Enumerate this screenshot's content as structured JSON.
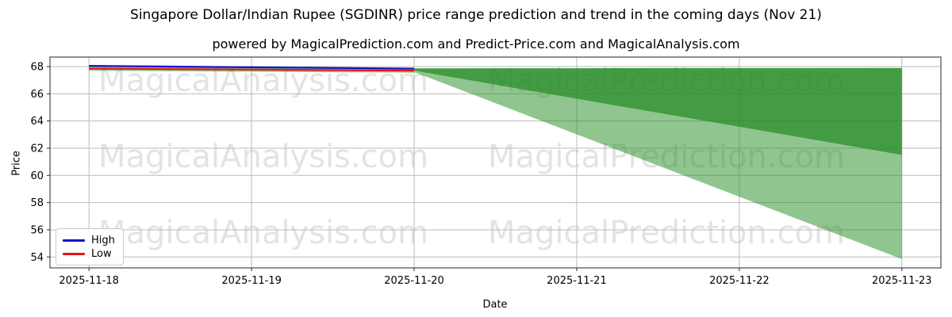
{
  "header": {
    "title": "Singapore Dollar/Indian Rupee (SGDINR) price range prediction and trend in the coming days (Nov 21)",
    "subtitle": "powered by MagicalPrediction.com and Predict-Price.com and MagicalAnalysis.com"
  },
  "watermarks": {
    "left_text": "MagicalAnalysis.com",
    "right_text": "MagicalPrediction.com"
  },
  "axes": {
    "x_label": "Date",
    "y_label": "Price"
  },
  "legend": {
    "items": [
      {
        "label": "High",
        "color": "#1212c8"
      },
      {
        "label": "Low",
        "color": "#e81414"
      }
    ]
  },
  "chart_data": {
    "type": "line",
    "title": "Singapore Dollar/Indian Rupee (SGDINR) price range prediction and trend in the coming days (Nov 21)",
    "xlabel": "Date",
    "ylabel": "Price",
    "grid": true,
    "legend_position": "lower left",
    "categories": [
      "2025-11-18",
      "2025-11-19",
      "2025-11-20",
      "2025-11-21",
      "2025-11-22",
      "2025-11-23"
    ],
    "y_ticks": [
      54,
      56,
      58,
      60,
      62,
      64,
      66,
      68
    ],
    "ylim": [
      53.2,
      68.7
    ],
    "x_pad_days": 0.24,
    "series": [
      {
        "name": "High",
        "color": "#1212c8",
        "x": [
          0,
          1,
          2
        ],
        "values": [
          68.05,
          67.95,
          67.85
        ]
      },
      {
        "name": "Low",
        "color": "#e81414",
        "x": [
          0,
          1,
          2
        ],
        "values": [
          67.85,
          67.78,
          67.7
        ]
      }
    ],
    "bands": [
      {
        "name": "history-range",
        "fill": "rgba(34,139,34,0.5)",
        "x": [
          0,
          1,
          2
        ],
        "upper": [
          68.05,
          67.95,
          67.85
        ],
        "lower": [
          67.7,
          67.62,
          67.55
        ]
      },
      {
        "name": "prediction-outer",
        "fill": "rgba(34,139,34,0.5)",
        "x": [
          2,
          3,
          4,
          5
        ],
        "upper": [
          67.7,
          65.63,
          63.57,
          61.5
        ],
        "lower": [
          67.6,
          63.02,
          58.43,
          53.85
        ]
      },
      {
        "name": "prediction-inner",
        "fill": "rgba(34,139,34,0.85)",
        "x": [
          2,
          3,
          4,
          5
        ],
        "upper": [
          67.87,
          67.88,
          67.89,
          67.9
        ],
        "lower": [
          67.7,
          65.63,
          63.57,
          61.5
        ]
      }
    ],
    "grid_color": "#bbbbbb",
    "spine_color": "#262626"
  }
}
